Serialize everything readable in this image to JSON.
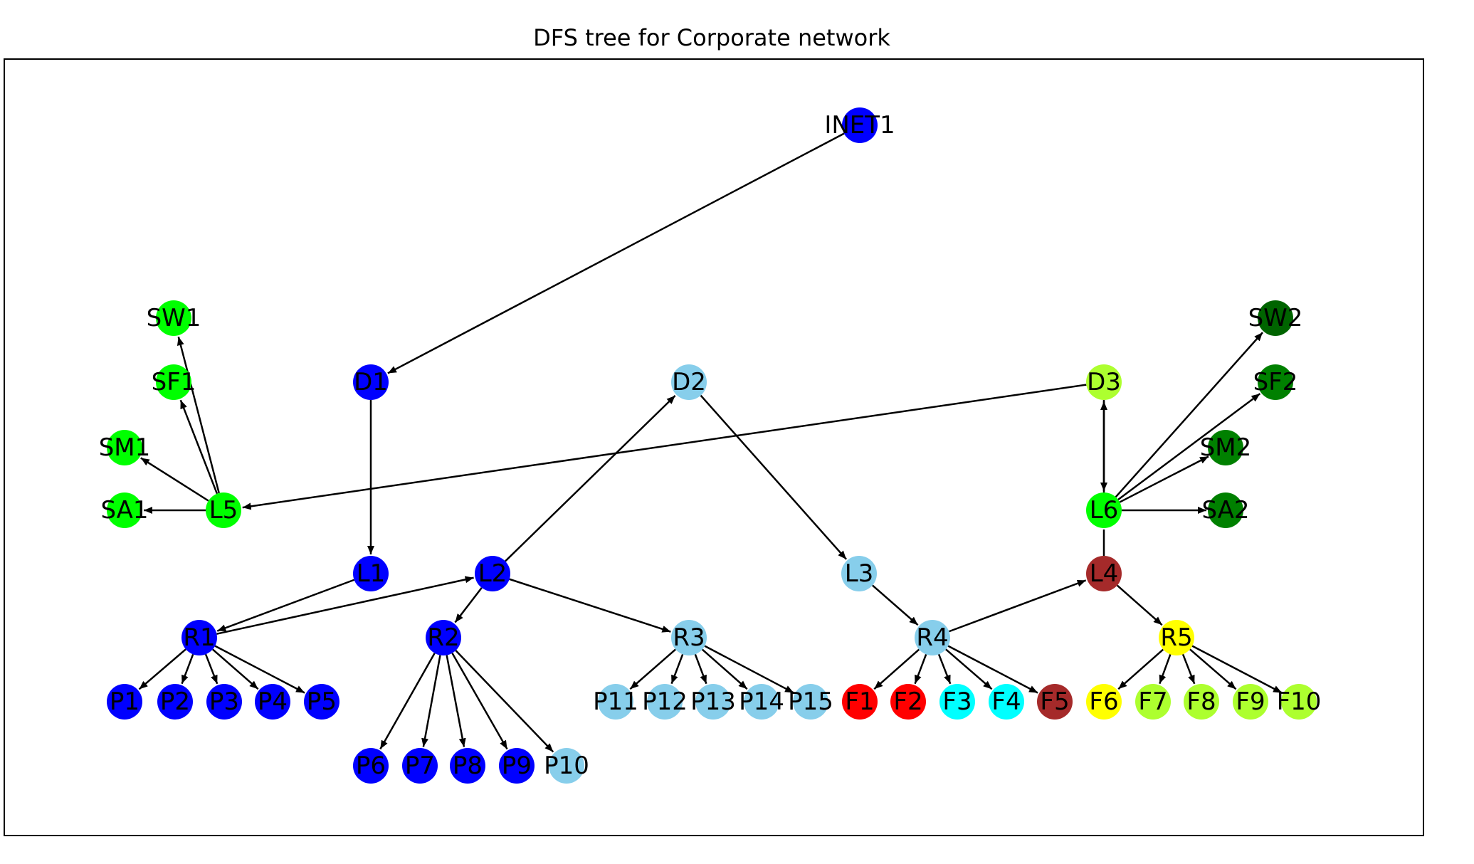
{
  "title": "DFS tree for Corporate network",
  "colors": {
    "blue": "#0000ff",
    "skyblue": "#87ceeb",
    "lime": "#00ff00",
    "darkgreen": "#006400",
    "green": "#008000",
    "greenyellow": "#adff2f",
    "brown": "#a52a2a",
    "red": "#ff0000",
    "cyan": "#00ffff",
    "yellow": "#ffff00"
  },
  "nodes": [
    {
      "id": "INET1",
      "label": "INET1",
      "color": "blue"
    },
    {
      "id": "D1",
      "label": "D1",
      "color": "blue"
    },
    {
      "id": "D2",
      "label": "D2",
      "color": "skyblue"
    },
    {
      "id": "D3",
      "label": "D3",
      "color": "greenyellow"
    },
    {
      "id": "SW1",
      "label": "SW1",
      "color": "lime"
    },
    {
      "id": "SF1",
      "label": "SF1",
      "color": "lime"
    },
    {
      "id": "SM1",
      "label": "SM1",
      "color": "lime"
    },
    {
      "id": "SA1",
      "label": "SA1",
      "color": "lime"
    },
    {
      "id": "L5",
      "label": "L5",
      "color": "lime"
    },
    {
      "id": "SW2",
      "label": "SW2",
      "color": "darkgreen"
    },
    {
      "id": "SF2",
      "label": "SF2",
      "color": "green"
    },
    {
      "id": "SM2",
      "label": "SM2",
      "color": "green"
    },
    {
      "id": "SA2",
      "label": "SA2",
      "color": "green"
    },
    {
      "id": "L6",
      "label": "L6",
      "color": "lime"
    },
    {
      "id": "L1",
      "label": "L1",
      "color": "blue"
    },
    {
      "id": "L2",
      "label": "L2",
      "color": "blue"
    },
    {
      "id": "L3",
      "label": "L3",
      "color": "skyblue"
    },
    {
      "id": "L4",
      "label": "L4",
      "color": "brown"
    },
    {
      "id": "R1",
      "label": "R1",
      "color": "blue"
    },
    {
      "id": "R2",
      "label": "R2",
      "color": "blue"
    },
    {
      "id": "R3",
      "label": "R3",
      "color": "skyblue"
    },
    {
      "id": "R4",
      "label": "R4",
      "color": "skyblue"
    },
    {
      "id": "R5",
      "label": "R5",
      "color": "yellow"
    },
    {
      "id": "P1",
      "label": "P1",
      "color": "blue"
    },
    {
      "id": "P2",
      "label": "P2",
      "color": "blue"
    },
    {
      "id": "P3",
      "label": "P3",
      "color": "blue"
    },
    {
      "id": "P4",
      "label": "P4",
      "color": "blue"
    },
    {
      "id": "P5",
      "label": "P5",
      "color": "blue"
    },
    {
      "id": "P6",
      "label": "P6",
      "color": "blue"
    },
    {
      "id": "P7",
      "label": "P7",
      "color": "blue"
    },
    {
      "id": "P8",
      "label": "P8",
      "color": "blue"
    },
    {
      "id": "P9",
      "label": "P9",
      "color": "blue"
    },
    {
      "id": "P10",
      "label": "P10",
      "color": "skyblue"
    },
    {
      "id": "P11",
      "label": "P11",
      "color": "skyblue"
    },
    {
      "id": "P12",
      "label": "P12",
      "color": "skyblue"
    },
    {
      "id": "P13",
      "label": "P13",
      "color": "skyblue"
    },
    {
      "id": "P14",
      "label": "P14",
      "color": "skyblue"
    },
    {
      "id": "P15",
      "label": "P15",
      "color": "skyblue"
    },
    {
      "id": "F1",
      "label": "F1",
      "color": "red"
    },
    {
      "id": "F2",
      "label": "F2",
      "color": "red"
    },
    {
      "id": "F3",
      "label": "F3",
      "color": "cyan"
    },
    {
      "id": "F4",
      "label": "F4",
      "color": "cyan"
    },
    {
      "id": "F5",
      "label": "F5",
      "color": "brown"
    },
    {
      "id": "F6",
      "label": "F6",
      "color": "yellow"
    },
    {
      "id": "F7",
      "label": "F7",
      "color": "greenyellow"
    },
    {
      "id": "F8",
      "label": "F8",
      "color": "greenyellow"
    },
    {
      "id": "F9",
      "label": "F9",
      "color": "greenyellow"
    },
    {
      "id": "F10",
      "label": "F10",
      "color": "greenyellow"
    }
  ],
  "edges": [
    {
      "from": "INET1",
      "to": "D1",
      "arrow": true
    },
    {
      "from": "D1",
      "to": "L1",
      "arrow": true
    },
    {
      "from": "L1",
      "to": "R1",
      "arrow": true
    },
    {
      "from": "R1",
      "to": "L2",
      "arrow": true
    },
    {
      "from": "L2",
      "to": "D2",
      "arrow": true
    },
    {
      "from": "D2",
      "to": "L3",
      "arrow": true
    },
    {
      "from": "L3",
      "to": "R4",
      "arrow": true
    },
    {
      "from": "R4",
      "to": "L4",
      "arrow": true
    },
    {
      "from": "L4",
      "to": "L6",
      "arrow": false
    },
    {
      "from": "L6",
      "to": "D3",
      "arrow": true
    },
    {
      "from": "D3",
      "to": "L6",
      "arrow": true
    },
    {
      "from": "D3",
      "to": "L5",
      "arrow": true
    },
    {
      "from": "L5",
      "to": "SW1",
      "arrow": true
    },
    {
      "from": "L5",
      "to": "SF1",
      "arrow": true
    },
    {
      "from": "L5",
      "to": "SM1",
      "arrow": true
    },
    {
      "from": "L5",
      "to": "SA1",
      "arrow": true
    },
    {
      "from": "L6",
      "to": "SW2",
      "arrow": true
    },
    {
      "from": "L6",
      "to": "SF2",
      "arrow": true
    },
    {
      "from": "L6",
      "to": "SM2",
      "arrow": true
    },
    {
      "from": "L6",
      "to": "SA2",
      "arrow": true
    },
    {
      "from": "L2",
      "to": "R2",
      "arrow": true
    },
    {
      "from": "L2",
      "to": "R3",
      "arrow": true
    },
    {
      "from": "L4",
      "to": "R5",
      "arrow": true
    },
    {
      "from": "R1",
      "to": "P1",
      "arrow": true
    },
    {
      "from": "R1",
      "to": "P2",
      "arrow": true
    },
    {
      "from": "R1",
      "to": "P3",
      "arrow": true
    },
    {
      "from": "R1",
      "to": "P4",
      "arrow": true
    },
    {
      "from": "R1",
      "to": "P5",
      "arrow": true
    },
    {
      "from": "R2",
      "to": "P6",
      "arrow": true
    },
    {
      "from": "R2",
      "to": "P7",
      "arrow": true
    },
    {
      "from": "R2",
      "to": "P8",
      "arrow": true
    },
    {
      "from": "R2",
      "to": "P9",
      "arrow": true
    },
    {
      "from": "R2",
      "to": "P10",
      "arrow": true
    },
    {
      "from": "R3",
      "to": "P11",
      "arrow": true
    },
    {
      "from": "R3",
      "to": "P12",
      "arrow": true
    },
    {
      "from": "R3",
      "to": "P13",
      "arrow": true
    },
    {
      "from": "R3",
      "to": "P14",
      "arrow": true
    },
    {
      "from": "R3",
      "to": "P15",
      "arrow": true
    },
    {
      "from": "R4",
      "to": "F1",
      "arrow": true
    },
    {
      "from": "R4",
      "to": "F2",
      "arrow": true
    },
    {
      "from": "R4",
      "to": "F3",
      "arrow": true
    },
    {
      "from": "R4",
      "to": "F4",
      "arrow": true
    },
    {
      "from": "R4",
      "to": "F5",
      "arrow": true
    },
    {
      "from": "R5",
      "to": "F6",
      "arrow": true
    },
    {
      "from": "R5",
      "to": "F7",
      "arrow": true
    },
    {
      "from": "R5",
      "to": "F8",
      "arrow": true
    },
    {
      "from": "R5",
      "to": "F9",
      "arrow": true
    },
    {
      "from": "R5",
      "to": "F10",
      "arrow": true
    }
  ]
}
